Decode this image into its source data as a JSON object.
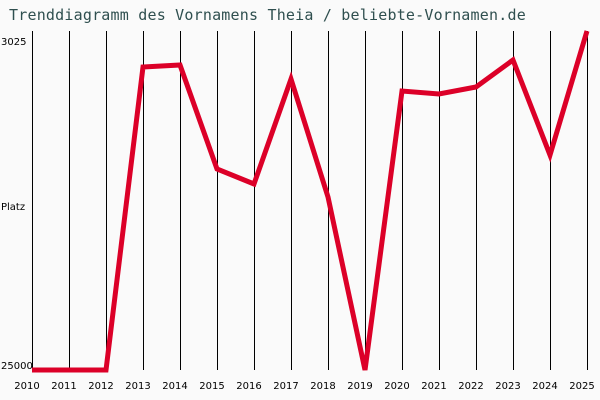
{
  "title": "Trenddiagramm des Vornamens Theia / beliebte-Vornamen.de",
  "colors": {
    "background": "#fafafa",
    "title": "#2f4f4f",
    "line": "#dc0028",
    "grid": "#000000"
  },
  "y_axis": {
    "top_label": "3025",
    "middle_label": "Platz",
    "bottom_label": "25000"
  },
  "chart_data": {
    "type": "line",
    "title": "Trenddiagramm des Vornamens Theia / beliebte-Vornamen.de",
    "xlabel": "",
    "ylabel": "Platz",
    "x": [
      "2010",
      "2011",
      "2012",
      "2013",
      "2014",
      "2015",
      "2016",
      "2017",
      "2018",
      "2019",
      "2020",
      "2021",
      "2022",
      "2023",
      "2024",
      "2025"
    ],
    "series": [
      {
        "name": "Theia",
        "values": [
          25000,
          25000,
          25000,
          5359,
          5229,
          11971,
          12943,
          6136,
          13786,
          25000,
          6914,
          7109,
          6655,
          4905,
          11063,
          3025
        ]
      }
    ],
    "ylim": [
      25000,
      3025
    ],
    "y_inverted": true,
    "grid": "vertical lines at each year",
    "legend": "none"
  }
}
